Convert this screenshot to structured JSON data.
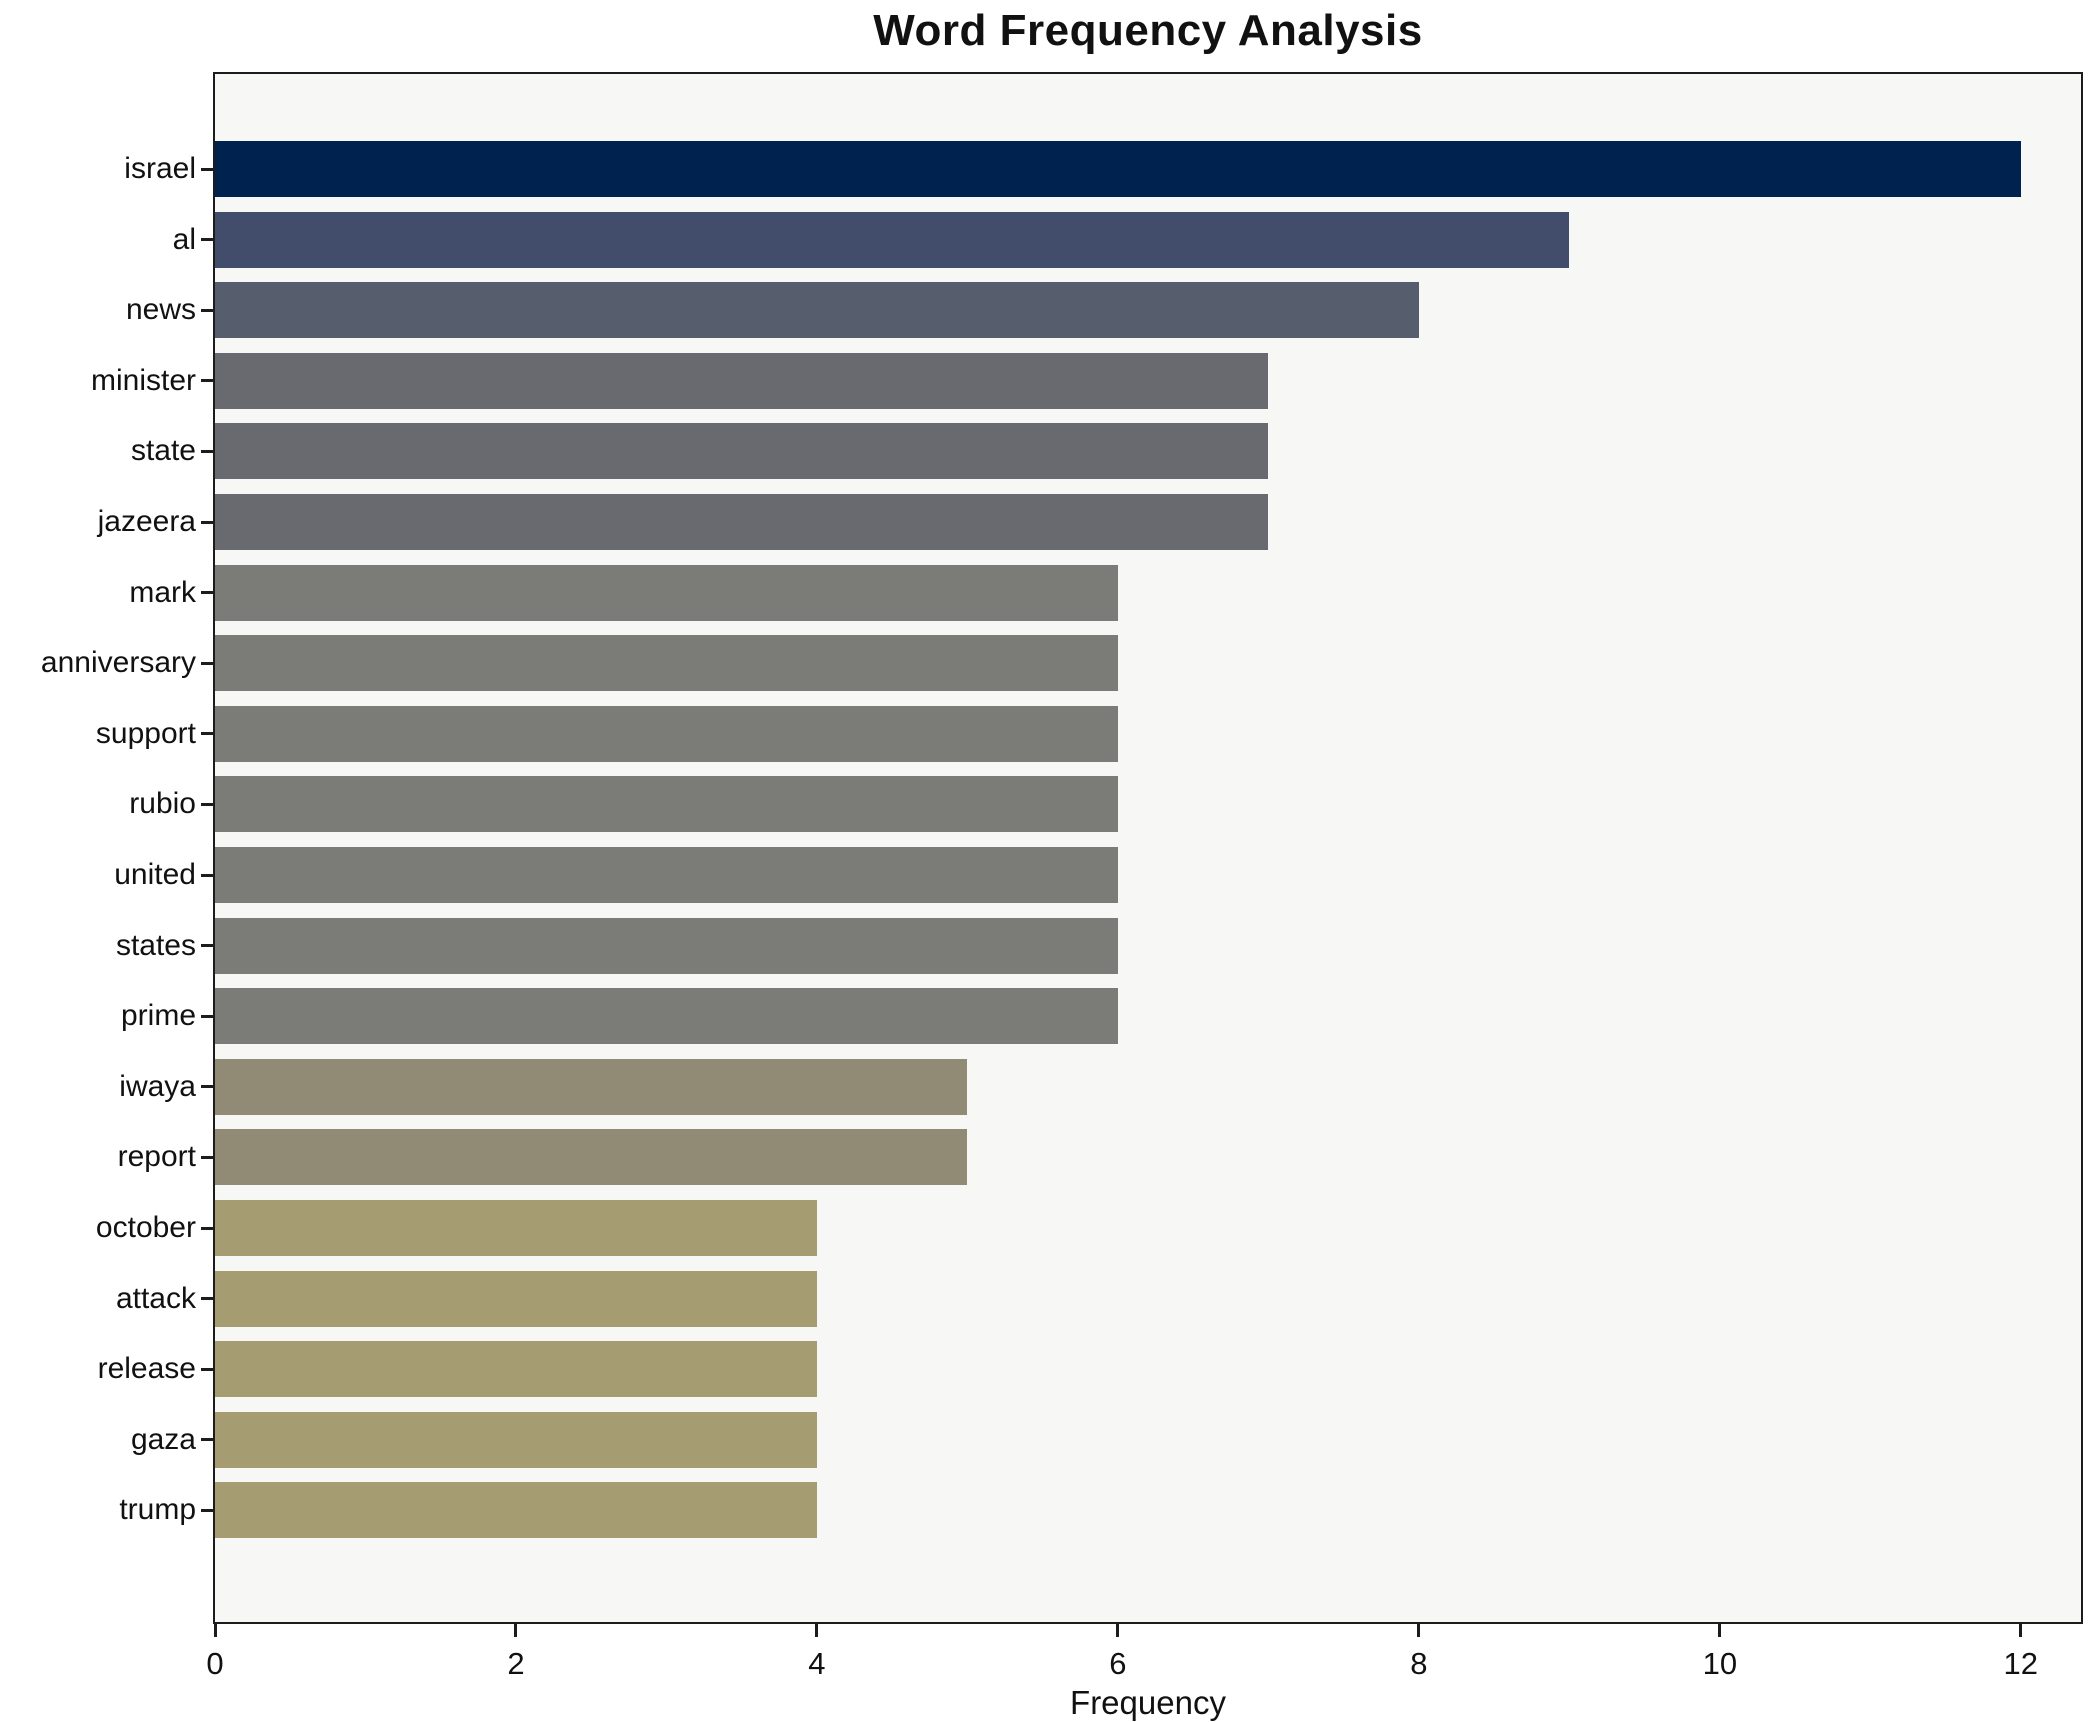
{
  "chart_data": {
    "type": "bar",
    "orientation": "horizontal",
    "title": "Word Frequency Analysis",
    "xlabel": "Frequency",
    "ylabel": "",
    "categories": [
      "israel",
      "al",
      "news",
      "minister",
      "state",
      "jazeera",
      "mark",
      "anniversary",
      "support",
      "rubio",
      "united",
      "states",
      "prime",
      "iwaya",
      "report",
      "october",
      "attack",
      "release",
      "gaza",
      "trump"
    ],
    "values": [
      12,
      9,
      8,
      7,
      7,
      7,
      6,
      6,
      6,
      6,
      6,
      6,
      6,
      5,
      5,
      4,
      4,
      4,
      4,
      4
    ],
    "bar_colors": [
      "#00224e",
      "#414d6b",
      "#565d6d",
      "#696a70",
      "#696a70",
      "#696a70",
      "#7b7b77",
      "#7b7b77",
      "#7b7b77",
      "#7b7b77",
      "#7b7b77",
      "#7b7b77",
      "#7b7b77",
      "#918a74",
      "#918a74",
      "#a69c72",
      "#a69c72",
      "#a69c72",
      "#a69c72",
      "#a69c72"
    ],
    "x_ticks": [
      0,
      2,
      4,
      6,
      8,
      10,
      12
    ],
    "xlim": [
      0,
      12.4
    ],
    "grid": false,
    "legend": null,
    "plot_background": "#f7f7f5",
    "frame_color": "#1c1c1c",
    "colormap": "cividis"
  }
}
